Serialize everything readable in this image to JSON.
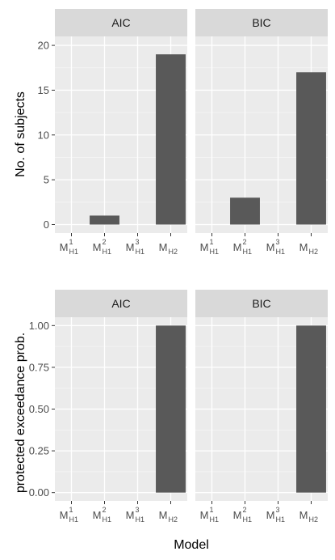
{
  "chart_data": [
    {
      "type": "bar",
      "ylabel": "No. of subjects",
      "ylim": [
        -0.95,
        21
      ],
      "yticks": [
        0,
        5,
        10,
        15,
        20
      ],
      "ytick_labels": [
        "0",
        "5",
        "10",
        "15",
        "20"
      ],
      "categories": [
        "M_H1^1",
        "M_H1^2",
        "M_H1^3",
        "M_H2"
      ],
      "category_labels": [
        {
          "main": "M",
          "sub": "H1",
          "sup": "1"
        },
        {
          "main": "M",
          "sub": "H1",
          "sup": "2"
        },
        {
          "main": "M",
          "sub": "H1",
          "sup": "3"
        },
        {
          "main": "M",
          "sub": "H2",
          "sup": ""
        }
      ],
      "grid": true,
      "facets": [
        {
          "label": "AIC",
          "values": [
            0,
            1,
            0,
            19
          ]
        },
        {
          "label": "BIC",
          "values": [
            0,
            3,
            0,
            17
          ]
        }
      ]
    },
    {
      "type": "bar",
      "ylabel": "protected exceedance prob.",
      "xlabel": "Model",
      "ylim": [
        -0.05,
        1.05
      ],
      "yticks": [
        0,
        0.25,
        0.5,
        0.75,
        1
      ],
      "ytick_labels": [
        "0.00",
        "0.25",
        "0.50",
        "0.75",
        "1.00"
      ],
      "categories": [
        "M_H1^1",
        "M_H1^2",
        "M_H1^3",
        "M_H2"
      ],
      "category_labels": [
        {
          "main": "M",
          "sub": "H1",
          "sup": "1"
        },
        {
          "main": "M",
          "sub": "H1",
          "sup": "2"
        },
        {
          "main": "M",
          "sub": "H1",
          "sup": "3"
        },
        {
          "main": "M",
          "sub": "H2",
          "sup": ""
        }
      ],
      "grid": true,
      "facets": [
        {
          "label": "AIC",
          "values": [
            0,
            0,
            0,
            1
          ]
        },
        {
          "label": "BIC",
          "values": [
            0,
            0,
            0,
            1
          ]
        }
      ]
    }
  ],
  "colors": {
    "bar": "#595959",
    "panel_bg": "#ebebeb",
    "strip_bg": "#d9d9d9",
    "grid_major": "#ffffff",
    "grid_minor": "#f5f5f5",
    "tick": "#333333"
  }
}
